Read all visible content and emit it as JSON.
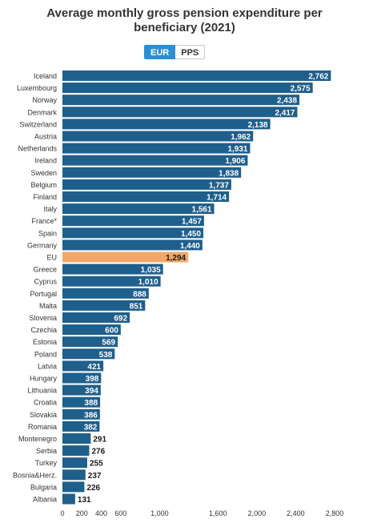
{
  "title_lines": [
    "Average monthly gross pension expenditure per",
    "beneficiary (2021)"
  ],
  "toggle": {
    "eur_label": "EUR",
    "pps_label": "PPS",
    "selected": "EUR"
  },
  "colors": {
    "bar": "#1f5f8b",
    "highlight": "#f0a868",
    "active": "#2a8fd2",
    "tick": "#333333"
  },
  "chart_data": {
    "type": "bar",
    "orientation": "horizontal",
    "title": "Average monthly gross pension expenditure per beneficiary (2021)",
    "unit": "EUR",
    "categories": [
      "Iceland",
      "Luxembourg",
      "Norway",
      "Denmark",
      "Switzerland",
      "Austria",
      "Netherlands",
      "Ireland",
      "Sweden",
      "Belgium",
      "Finland",
      "Italy",
      "France*",
      "Spain",
      "Germany",
      "EU",
      "Greece",
      "Cyprus",
      "Portugal",
      "Malta",
      "Slovenia",
      "Czechia",
      "Estonia",
      "Poland",
      "Latvia",
      "Hungary",
      "Lithuania",
      "Croatia",
      "Slovakia",
      "Romania",
      "Montenegro",
      "Serbia",
      "Turkey",
      "Bosnia&Herz.",
      "Bulgaria",
      "Albania"
    ],
    "values": [
      2762,
      2575,
      2438,
      2417,
      2138,
      1962,
      1931,
      1906,
      1838,
      1737,
      1714,
      1561,
      1457,
      1450,
      1440,
      1294,
      1035,
      1010,
      888,
      851,
      692,
      600,
      569,
      538,
      421,
      398,
      394,
      388,
      386,
      382,
      291,
      276,
      255,
      237,
      226,
      131
    ],
    "labels": [
      "2,762",
      "2,575",
      "2,438",
      "2,417",
      "2,138",
      "1,962",
      "1,931",
      "1,906",
      "1,838",
      "1,737",
      "1,714",
      "1,561",
      "1,457",
      "1,450",
      "1,440",
      "1,294",
      "1,035",
      "1,010",
      "888",
      "851",
      "692",
      "600",
      "569",
      "538",
      "421",
      "398",
      "394",
      "388",
      "386",
      "382",
      "291",
      "276",
      "255",
      "237",
      "226",
      "131"
    ],
    "highlight": "EU",
    "xticks": [
      0,
      200,
      400,
      600,
      1000,
      1600,
      2000,
      2400,
      2800
    ],
    "xtick_labels": [
      "0",
      "200",
      "400",
      "600",
      "1,000",
      "1,600",
      "2,000",
      "2,400",
      "2,800"
    ],
    "xlim": [
      0,
      2800
    ],
    "grid": false,
    "legend": "none"
  }
}
